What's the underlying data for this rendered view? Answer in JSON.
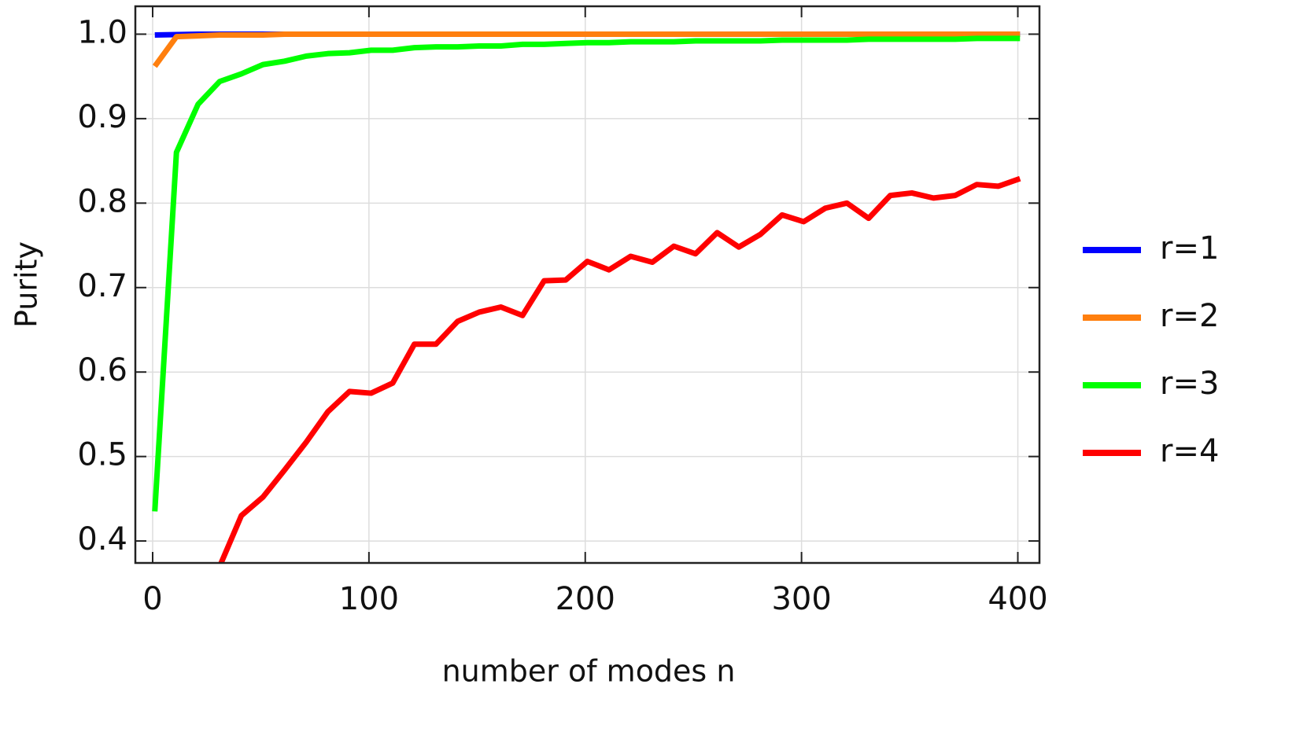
{
  "chart_data": {
    "type": "line",
    "xlabel": "number of modes n",
    "ylabel": "Purity",
    "x": [
      1,
      11,
      21,
      31,
      41,
      51,
      61,
      71,
      81,
      91,
      101,
      111,
      121,
      131,
      141,
      151,
      161,
      171,
      181,
      191,
      201,
      211,
      221,
      231,
      241,
      251,
      261,
      271,
      281,
      291,
      301,
      311,
      321,
      331,
      341,
      351,
      361,
      371,
      381,
      391,
      401
    ],
    "series": [
      {
        "name": "r=1",
        "color": "#0000ff",
        "values": [
          0.999,
          0.9995,
          1,
          1,
          1,
          1,
          1,
          1,
          1,
          1,
          1,
          1,
          1,
          1,
          1,
          1,
          1,
          1,
          1,
          1,
          1,
          1,
          1,
          1,
          1,
          1,
          1,
          1,
          1,
          1,
          1,
          1,
          1,
          1,
          1,
          1,
          1,
          1,
          1,
          1,
          1
        ]
      },
      {
        "name": "r=2",
        "color": "#ff7f0e",
        "values": [
          0.962,
          0.997,
          0.998,
          0.999,
          0.999,
          0.999,
          1,
          1,
          1,
          1,
          1,
          1,
          1,
          1,
          1,
          1,
          1,
          1,
          1,
          1,
          1,
          1,
          1,
          1,
          1,
          1,
          1,
          1,
          1,
          1,
          1,
          1,
          1,
          1,
          1,
          1,
          1,
          1,
          1,
          1,
          1
        ]
      },
      {
        "name": "r=3",
        "color": "#00ff00",
        "values": [
          0.435,
          0.86,
          0.917,
          0.944,
          0.953,
          0.964,
          0.968,
          0.974,
          0.977,
          0.978,
          0.981,
          0.981,
          0.984,
          0.985,
          0.985,
          0.986,
          0.986,
          0.988,
          0.988,
          0.989,
          0.99,
          0.99,
          0.991,
          0.991,
          0.991,
          0.992,
          0.992,
          0.992,
          0.992,
          0.993,
          0.993,
          0.993,
          0.993,
          0.994,
          0.994,
          0.994,
          0.994,
          0.994,
          0.995,
          0.995,
          0.995
        ]
      },
      {
        "name": "r=4",
        "color": "#ff0000",
        "values": [
          null,
          null,
          null,
          0.37,
          0.43,
          0.452,
          0.484,
          0.517,
          0.553,
          0.577,
          0.575,
          0.587,
          0.633,
          0.633,
          0.66,
          0.671,
          0.677,
          0.667,
          0.708,
          0.709,
          0.731,
          0.721,
          0.737,
          0.73,
          0.749,
          0.74,
          0.765,
          0.748,
          0.763,
          0.786,
          0.778,
          0.794,
          0.8,
          0.782,
          0.809,
          0.812,
          0.806,
          0.809,
          0.822,
          0.82,
          0.829
        ]
      }
    ],
    "xlim": [
      -8,
      410
    ],
    "ylim": [
      0.374,
      1.033
    ],
    "xticks": [
      0,
      100,
      200,
      300,
      400
    ],
    "yticks": [
      0.4,
      0.5,
      0.6,
      0.7,
      0.8,
      0.9,
      {
        "value": 1,
        "label": "1.0"
      }
    ],
    "grid": true,
    "legend": "right"
  }
}
